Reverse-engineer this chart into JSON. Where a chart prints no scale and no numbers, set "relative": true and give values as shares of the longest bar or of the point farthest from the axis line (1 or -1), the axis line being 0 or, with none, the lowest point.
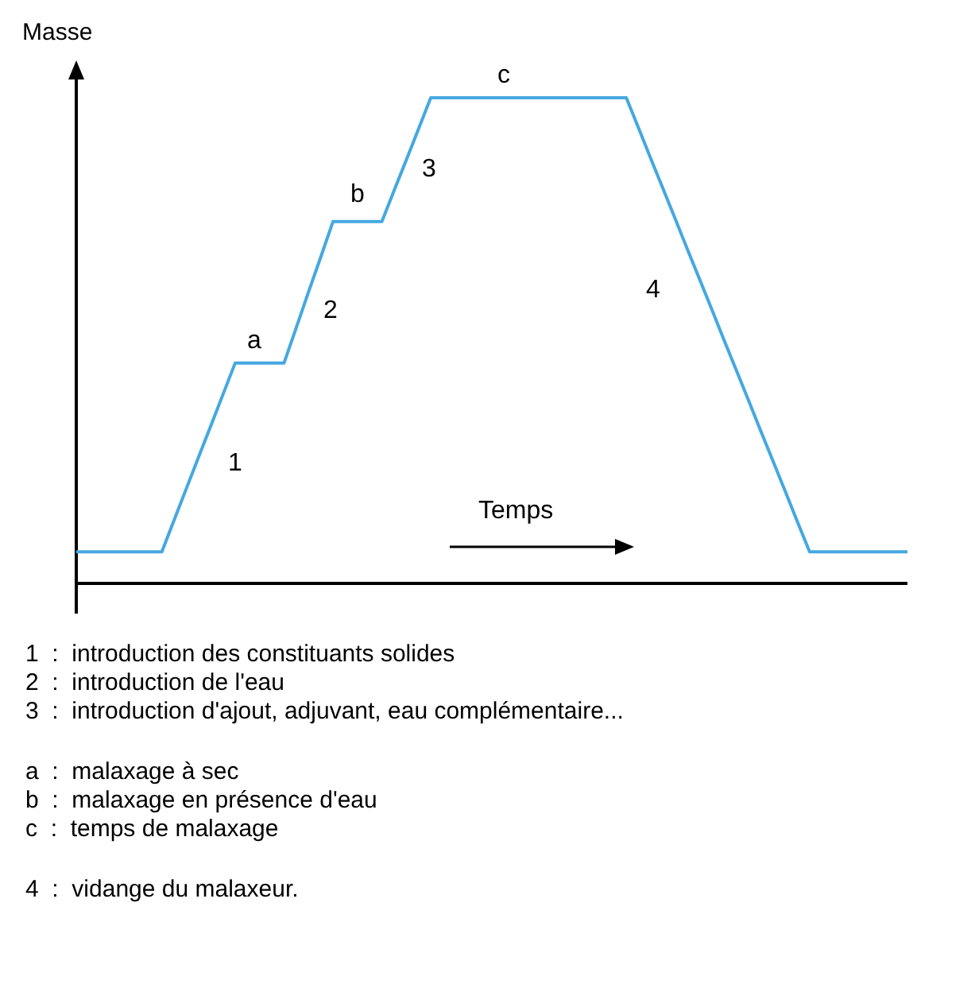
{
  "chart_data": {
    "type": "line",
    "relative": true,
    "ylabel": "Masse",
    "xlabel": "Temps",
    "marker": "none",
    "line_style": "solid",
    "categories": [
      null,
      null,
      null,
      null,
      null,
      null,
      null,
      null,
      null,
      null,
      null,
      null,
      null,
      null,
      null,
      null,
      null,
      null,
      null,
      null,
      null,
      null,
      null,
      null,
      null,
      null,
      null,
      null,
      null,
      null,
      null,
      null,
      null,
      null,
      null,
      null,
      null,
      null,
      null,
      null,
      null,
      null,
      null,
      null,
      null,
      null,
      null,
      null,
      null,
      null,
      null,
      null,
      null,
      null,
      null,
      null,
      null,
      null,
      null,
      null,
      null,
      null,
      null,
      null,
      null,
      null,
      null,
      null,
      null
    ],
    "series": [
      {
        "color": "#45a8e0",
        "values": [
          0.065,
          0.065,
          0.065,
          0.065,
          0.065,
          0.065,
          0.065,
          0.065,
          0.13,
          0.195,
          0.26,
          0.324,
          0.389,
          0.454,
          0.454,
          0.454,
          0.454,
          0.454,
          0.527,
          0.6,
          0.672,
          0.745,
          0.745,
          0.745,
          0.745,
          0.745,
          0.809,
          0.872,
          0.936,
          1,
          1,
          1,
          1,
          1,
          1,
          1,
          1,
          1,
          1,
          1,
          1,
          1,
          1,
          1,
          1,
          1,
          0.938,
          0.875,
          0.813,
          0.751,
          0.688,
          0.626,
          0.564,
          0.501,
          0.439,
          0.377,
          0.314,
          0.252,
          0.19,
          0.127,
          0.065,
          0.065,
          0.065,
          0.065,
          0.065,
          0.065,
          0.065,
          0.065,
          0.065
        ]
      }
    ],
    "annotations": [
      "1",
      "a",
      "2",
      "b",
      "3",
      "c",
      "4",
      "1  :  introduction des constituants solides",
      "2  :  introduction de l'eau",
      "3  :  introduction d'ajout, adjuvant, eau complémentaire...",
      "a  :  malaxage à sec",
      "b  :  malaxage en présence d'eau",
      "c  :  temps de malaxage",
      "4  :  vidange du malaxeur."
    ]
  }
}
